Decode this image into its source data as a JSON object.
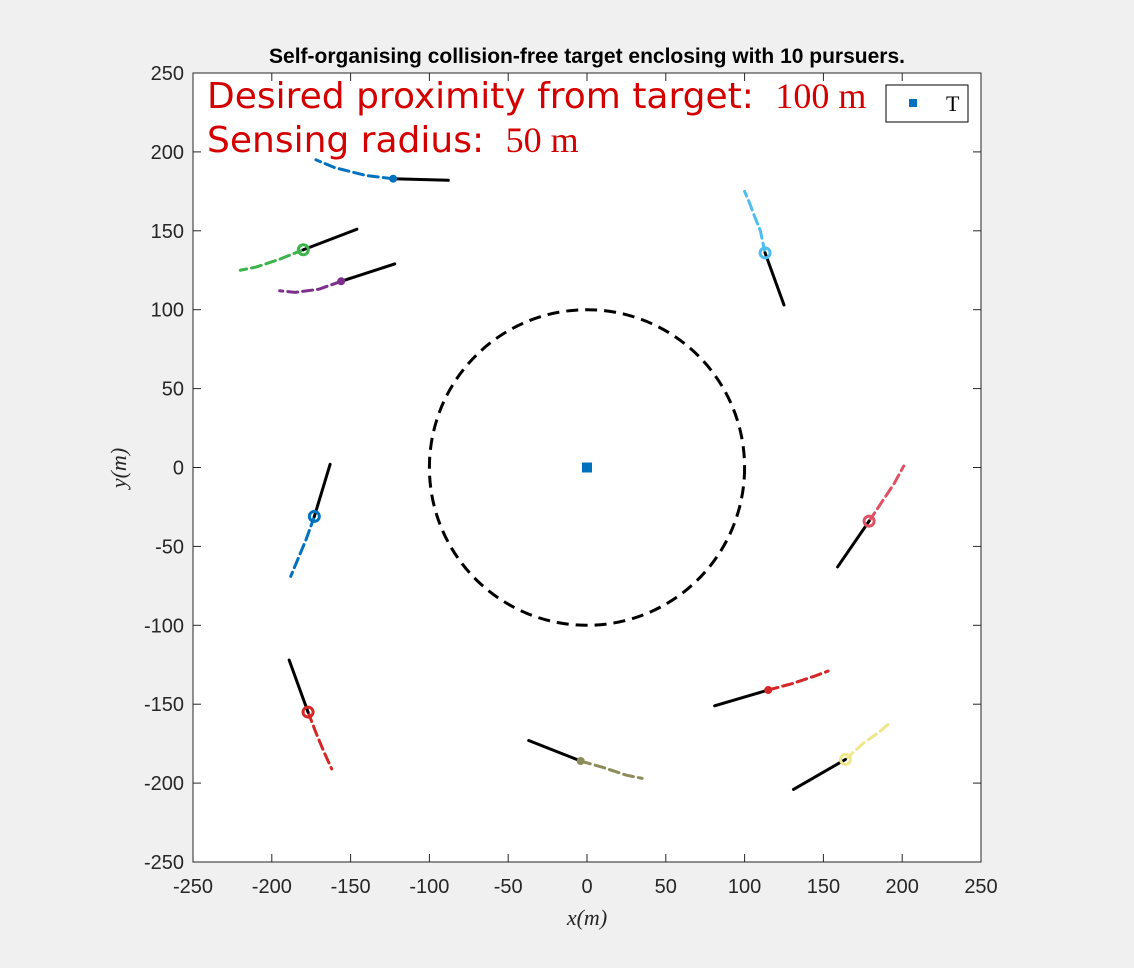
{
  "chart_data": {
    "type": "scatter",
    "title": "Self-organising collision-free target enclosing with 10 pursuers.",
    "xlabel": "x(m)",
    "ylabel": "y(m)",
    "xlim": [
      -250,
      250
    ],
    "ylim": [
      -250,
      250
    ],
    "xticks": [
      "-250",
      "-200",
      "-150",
      "-100",
      "-50",
      "0",
      "50",
      "100",
      "150",
      "200",
      "250"
    ],
    "yticks": [
      "250",
      "200",
      "150",
      "100",
      "50",
      "0",
      "-50",
      "-100",
      "-150",
      "-200",
      "-250"
    ],
    "grid": false,
    "legend": {
      "position": "top-right",
      "entries": [
        "T"
      ]
    },
    "annotations": {
      "line1_label": "Desired proximity from target:",
      "line1_value": "100 m",
      "line2_label": "Sensing radius:",
      "line2_value": "50 m"
    },
    "target": {
      "name": "T",
      "x": 0,
      "y": 0,
      "color": "#0072bd"
    },
    "desired_circle": {
      "center": [
        0,
        0
      ],
      "radius": 100
    },
    "pursuers": [
      {
        "color": "#0072bd",
        "pos": [
          -123,
          183
        ],
        "heading_end": [
          -88,
          182
        ],
        "trail": [
          [
            -123,
            183
          ],
          [
            -140,
            185
          ],
          [
            -160,
            190
          ],
          [
            -172,
            195
          ]
        ],
        "marker": "small"
      },
      {
        "color": "#3cb44b",
        "pos": [
          -180,
          138
        ],
        "heading_end": [
          -146,
          151
        ],
        "trail": [
          [
            -180,
            138
          ],
          [
            -195,
            132
          ],
          [
            -210,
            127
          ],
          [
            -220,
            125
          ]
        ],
        "marker": "circle"
      },
      {
        "color": "#7e2f8e",
        "pos": [
          -156,
          118
        ],
        "heading_end": [
          -122,
          129
        ],
        "trail": [
          [
            -156,
            118
          ],
          [
            -170,
            113
          ],
          [
            -185,
            111
          ],
          [
            -195,
            112
          ]
        ],
        "marker": "small"
      },
      {
        "color": "#4dbeee",
        "pos": [
          113,
          136
        ],
        "heading_end": [
          125,
          103
        ],
        "trail": [
          [
            113,
            136
          ],
          [
            110,
            150
          ],
          [
            106,
            160
          ],
          [
            103,
            168
          ],
          [
            100,
            175
          ]
        ],
        "marker": "circle"
      },
      {
        "color": "#0072bd",
        "pos": [
          -173,
          -31
        ],
        "heading_end": [
          -163,
          2
        ],
        "trail": [
          [
            -173,
            -31
          ],
          [
            -178,
            -45
          ],
          [
            -183,
            -57
          ],
          [
            -188,
            -69
          ]
        ],
        "marker": "circle"
      },
      {
        "color": "#e05263",
        "pos": [
          179,
          -34
        ],
        "heading_end": [
          159,
          -63
        ],
        "trail": [
          [
            179,
            -34
          ],
          [
            187,
            -22
          ],
          [
            195,
            -10
          ],
          [
            201,
            1
          ]
        ],
        "marker": "circle"
      },
      {
        "color": "#d62728",
        "pos": [
          115,
          -141
        ],
        "heading_end": [
          81,
          -151
        ],
        "trail": [
          [
            115,
            -141
          ],
          [
            130,
            -137
          ],
          [
            145,
            -132
          ],
          [
            153,
            -129
          ]
        ],
        "marker": "small"
      },
      {
        "color": "#d62728",
        "pos": [
          -177,
          -155
        ],
        "heading_end": [
          -189,
          -122
        ],
        "trail": [
          [
            -177,
            -155
          ],
          [
            -172,
            -168
          ],
          [
            -167,
            -180
          ],
          [
            -162,
            -191
          ]
        ],
        "marker": "circle"
      },
      {
        "color": "#8c8c5a",
        "pos": [
          -4,
          -186
        ],
        "heading_end": [
          -37,
          -173
        ],
        "trail": [
          [
            -4,
            -186
          ],
          [
            10,
            -190
          ],
          [
            25,
            -195
          ],
          [
            35,
            -197
          ]
        ],
        "marker": "small"
      },
      {
        "color": "#f0e68c",
        "pos": [
          164,
          -185
        ],
        "heading_end": [
          131,
          -204
        ],
        "trail": [
          [
            164,
            -185
          ],
          [
            175,
            -175
          ],
          [
            185,
            -168
          ],
          [
            192,
            -162
          ]
        ],
        "marker": "circle"
      }
    ]
  }
}
